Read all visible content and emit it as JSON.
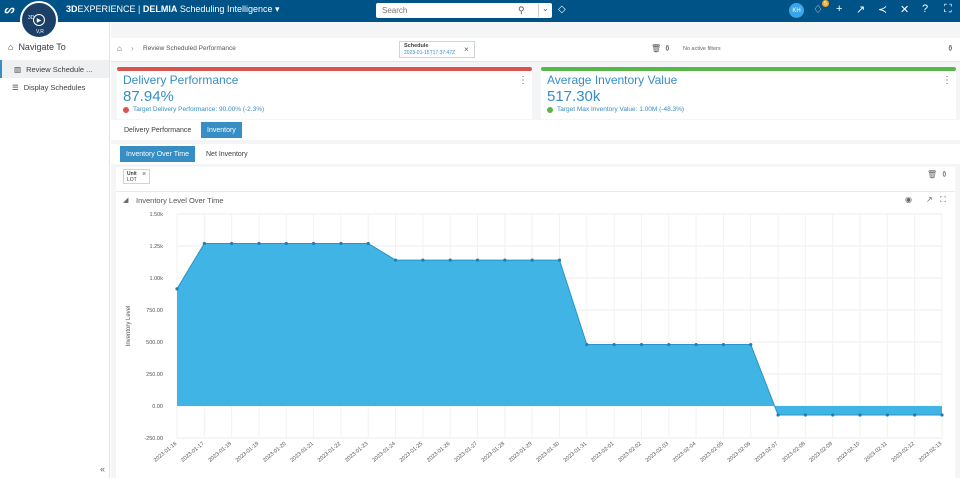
{
  "topbar": {
    "brand_3d": "3D",
    "brand_exp": "EXPERIENCE",
    "brand_sep": " | ",
    "brand_delmia": "DELMIA",
    "app_name": "Scheduling Intelligence",
    "search_placeholder": "Search",
    "avatar_initials": "KH",
    "notification_count": "5",
    "compass_top_left": "3D",
    "compass_bottom": "V,R"
  },
  "sidebar": {
    "title": "Navigate To",
    "items": [
      {
        "label": "Review Schedule ...",
        "icon": "bar-chart-icon"
      },
      {
        "label": "Display Schedules",
        "icon": "schedule-list-icon"
      }
    ]
  },
  "toolbar": {
    "breadcrumb": "Review Scheduled Performance",
    "schedule_chip_label": "Schedule",
    "schedule_chip_value": "2023-01-15T17:37:47Z",
    "filters_text": "No active filters"
  },
  "kpis": [
    {
      "title": "Delivery Performance",
      "value": "87.94%",
      "target": "Target Delivery Performance: 90.00% (-2.3%)",
      "bar_color": "#d9534f",
      "dot_color": "#d9534f"
    },
    {
      "title": "Average Inventory Value",
      "value": "517.30k",
      "target": "Target Max Inventory Value: 1.00M (-48.3%)",
      "bar_color": "#57b847",
      "dot_color": "#57b847"
    }
  ],
  "tabs": [
    "Delivery Performance",
    "Inventory"
  ],
  "subtabs": [
    "Inventory Over Time",
    "Net Inventory"
  ],
  "unit_chip": {
    "label": "Unit",
    "value": "LOT"
  },
  "chart_data": {
    "type": "area",
    "title": "Inventory Level Over Time",
    "ylabel": "Inventory Level",
    "xlabel": "",
    "ylim": [
      -250,
      1500
    ],
    "yticks": [
      "1.50k",
      "1.25k",
      "1.00k",
      "750.00",
      "500.00",
      "250.00",
      "0.00",
      "-250.00"
    ],
    "ytick_values": [
      1500,
      1250,
      1000,
      750,
      500,
      250,
      0,
      -250
    ],
    "grid": true,
    "fill_color": "#3fb4e5",
    "line_color": "#2b93c6",
    "x": [
      "2023-01-16",
      "2023-01-17",
      "2023-01-18",
      "2023-01-19",
      "2023-01-20",
      "2023-01-21",
      "2023-01-22",
      "2023-01-23",
      "2023-01-24",
      "2023-01-25",
      "2023-01-26",
      "2023-01-27",
      "2023-01-28",
      "2023-01-29",
      "2023-01-30",
      "2023-01-31",
      "2023-02-01",
      "2023-02-02",
      "2023-02-03",
      "2023-02-04",
      "2023-02-05",
      "2023-02-06",
      "2023-02-07",
      "2023-02-08",
      "2023-02-09",
      "2023-02-10",
      "2023-02-11",
      "2023-02-12",
      "2023-02-13"
    ],
    "values": [
      915,
      1270,
      1270,
      1270,
      1270,
      1270,
      1270,
      1270,
      1140,
      1140,
      1140,
      1140,
      1140,
      1140,
      1140,
      480,
      480,
      480,
      480,
      480,
      480,
      480,
      -70,
      -70,
      -70,
      -70,
      -70,
      -70,
      -70
    ]
  }
}
